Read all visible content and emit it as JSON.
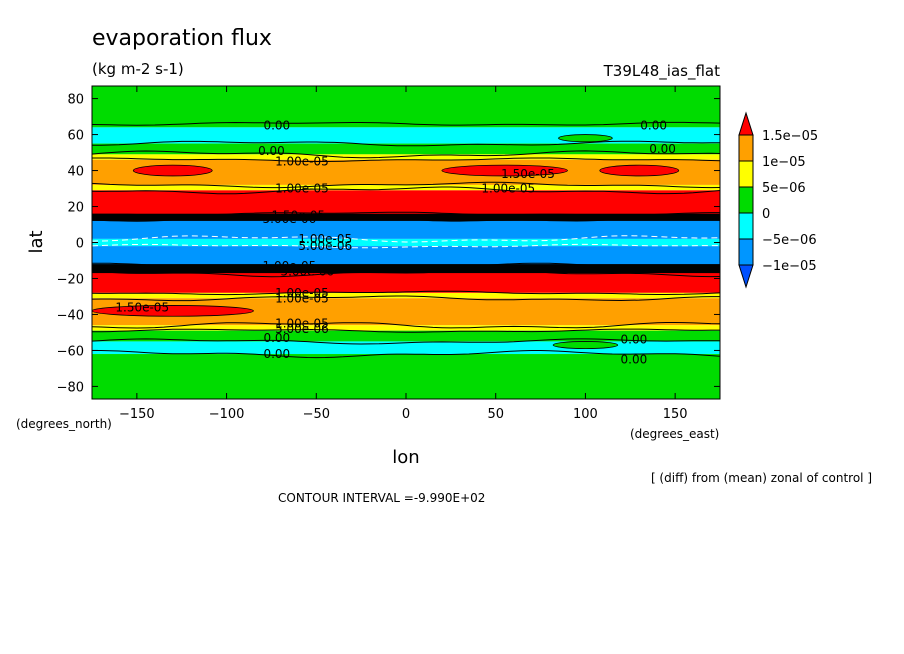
{
  "chart_data": {
    "type": "heatmap",
    "title": "evaporation flux",
    "units": "(kg m-2 s-1)",
    "run_label": "T39L48_ias_flat",
    "xlabel": "lon",
    "ylabel": "lat",
    "x_units": "(degrees_east)",
    "y_units": "(degrees_north)",
    "xlim": [
      -175,
      175
    ],
    "ylim": [
      -87,
      87
    ],
    "x_ticks": [
      -150,
      -100,
      -50,
      0,
      50,
      100,
      150
    ],
    "x_tick_labels": [
      "−150",
      "−100",
      "−50",
      "0",
      "50",
      "100",
      "150"
    ],
    "y_ticks": [
      80,
      60,
      40,
      20,
      0,
      -20,
      -40,
      -60,
      -80
    ],
    "y_tick_labels": [
      "80",
      "60",
      "40",
      "20",
      "0",
      "−20",
      "−40",
      "−60",
      "−80"
    ],
    "note": "[ (diff) from (mean) zonal of control ]",
    "contour_interval": "CONTOUR INTERVAL =-9.990E+02",
    "colorbar": {
      "levels": [
        "1.5e−05",
        "1e−05",
        "5e−06",
        "0",
        "−5e−06",
        "−1e−05"
      ],
      "colors": [
        "#ff0000",
        "#ffa000",
        "#ffff00",
        "#00dc00",
        "#00ffff",
        "#0096ff",
        "#0050ff"
      ]
    },
    "bands": [
      {
        "lat": [
          64,
          87
        ],
        "color": "#00dc00"
      },
      {
        "lat": [
          55,
          64
        ],
        "color": "#00ffff"
      },
      {
        "lat": [
          49,
          55
        ],
        "color": "#00dc00"
      },
      {
        "lat": [
          46,
          49
        ],
        "color": "#ffff00"
      },
      {
        "lat": [
          32,
          46
        ],
        "color": "#ffa000"
      },
      {
        "lat": [
          29,
          32
        ],
        "color": "#ffff00"
      },
      {
        "lat": [
          15,
          29
        ],
        "color": "#ff0000"
      },
      {
        "lat": [
          2,
          15
        ],
        "color": "#0096ff"
      },
      {
        "lat": [
          -2,
          2
        ],
        "color": "#00ffff"
      },
      {
        "lat": [
          -15,
          -2
        ],
        "color": "#0096ff"
      },
      {
        "lat": [
          -28,
          -15
        ],
        "color": "#ff0000"
      },
      {
        "lat": [
          -31,
          -28
        ],
        "color": "#ffff00"
      },
      {
        "lat": [
          -46,
          -31
        ],
        "color": "#ffa000"
      },
      {
        "lat": [
          -49,
          -46
        ],
        "color": "#ffff00"
      },
      {
        "lat": [
          -55,
          -49
        ],
        "color": "#00dc00"
      },
      {
        "lat": [
          -62,
          -55
        ],
        "color": "#00ffff"
      },
      {
        "lat": [
          -87,
          -62
        ],
        "color": "#00dc00"
      }
    ],
    "blobs": [
      {
        "lon": -130,
        "lat": 40,
        "rlon": 22,
        "rlat": 3,
        "color": "#ff0000"
      },
      {
        "lon": 55,
        "lat": 40,
        "rlon": 35,
        "rlat": 3,
        "color": "#ff0000"
      },
      {
        "lon": 130,
        "lat": 40,
        "rlon": 22,
        "rlat": 3,
        "color": "#ff0000"
      },
      {
        "lon": -130,
        "lat": -38,
        "rlon": 45,
        "rlat": 3,
        "color": "#ff0000"
      },
      {
        "lon": 100,
        "lat": 58,
        "rlon": 15,
        "rlat": 2,
        "color": "#00dc00"
      },
      {
        "lon": 100,
        "lat": -57,
        "rlon": 18,
        "rlat": 2,
        "color": "#00dc00"
      }
    ],
    "black_bands": [
      {
        "lat": [
          12,
          16
        ]
      },
      {
        "lat": [
          -17,
          -12
        ]
      }
    ],
    "contours": [
      {
        "lat": 66
      },
      {
        "lat": 55
      },
      {
        "lat": 49
      },
      {
        "lat": 46
      },
      {
        "lat": 32
      },
      {
        "lat": 29
      },
      {
        "lat": 16
      },
      {
        "lat": 13
      },
      {
        "lat": 2
      },
      {
        "lat": -2
      },
      {
        "lat": -13
      },
      {
        "lat": -17
      },
      {
        "lat": -28
      },
      {
        "lat": -31
      },
      {
        "lat": -46
      },
      {
        "lat": -49
      },
      {
        "lat": -55
      },
      {
        "lat": -62
      }
    ],
    "contour_labels": [
      {
        "text": "0.00",
        "lon": -72,
        "lat": 65
      },
      {
        "text": "0.00",
        "lon": 138,
        "lat": 65
      },
      {
        "text": "0.00",
        "lon": -75,
        "lat": 51
      },
      {
        "text": "0.00",
        "lon": 143,
        "lat": 52
      },
      {
        "text": "1.00e-05",
        "lon": -58,
        "lat": 45
      },
      {
        "text": "1.50e-05",
        "lon": 68,
        "lat": 38
      },
      {
        "text": "1.00e-05",
        "lon": 57,
        "lat": 30
      },
      {
        "text": "1.00e-05",
        "lon": -58,
        "lat": 30
      },
      {
        "text": "1.50e-05",
        "lon": -60,
        "lat": 15
      },
      {
        "text": "5.00e-06",
        "lon": -65,
        "lat": 13
      },
      {
        "text": "1.00e-05",
        "lon": -45,
        "lat": 2
      },
      {
        "text": "5.00e-06",
        "lon": -45,
        "lat": -2
      },
      {
        "text": "1.00e-05",
        "lon": -65,
        "lat": -13
      },
      {
        "text": "5.00e-06",
        "lon": -55,
        "lat": -16
      },
      {
        "text": "1.00e-05",
        "lon": -58,
        "lat": -28
      },
      {
        "text": "1.00e-05",
        "lon": -58,
        "lat": -31
      },
      {
        "text": "1.50e-05",
        "lon": -147,
        "lat": -36
      },
      {
        "text": "1.00e-05",
        "lon": -58,
        "lat": -45
      },
      {
        "text": "5.00e-06",
        "lon": -58,
        "lat": -48
      },
      {
        "text": "0.00",
        "lon": -72,
        "lat": -53
      },
      {
        "text": "0.00",
        "lon": -72,
        "lat": -62
      },
      {
        "text": "0.00",
        "lon": 127,
        "lat": -54
      },
      {
        "text": "0.00",
        "lon": 127,
        "lat": -65
      }
    ]
  }
}
